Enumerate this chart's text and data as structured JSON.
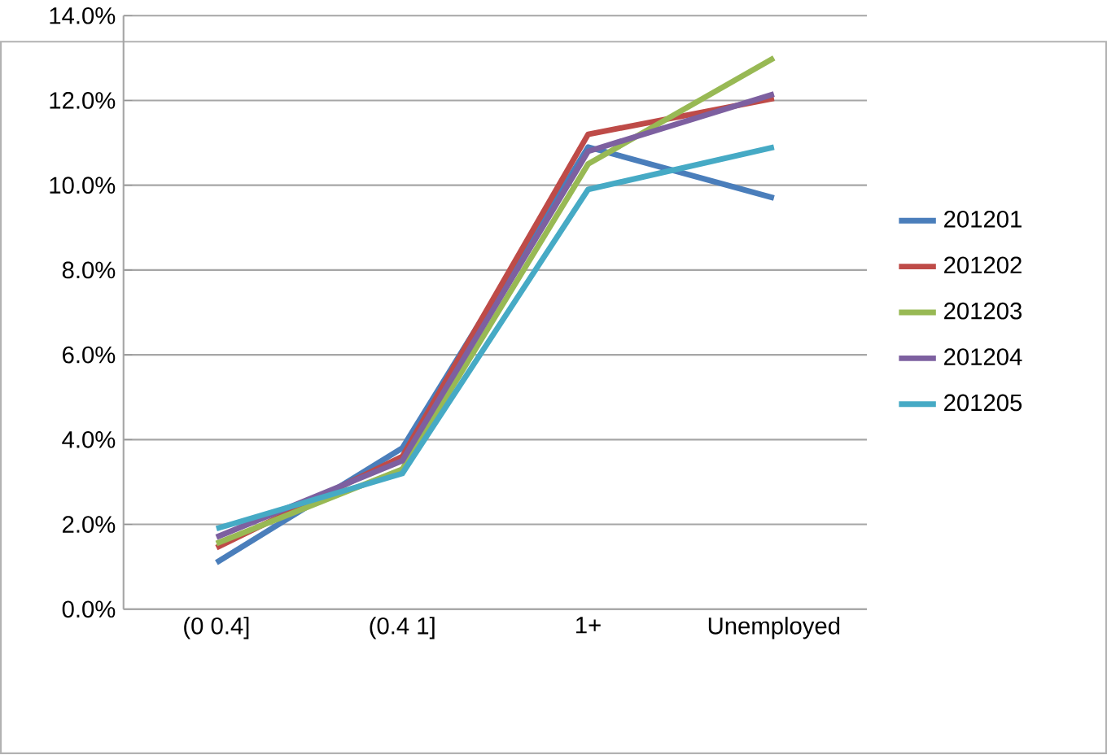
{
  "chart_data": {
    "type": "line",
    "categories": [
      "(0 0.4]",
      "(0.4 1]",
      "1+",
      "Unemployed"
    ],
    "series": [
      {
        "name": "201201",
        "color": "#4a7ebb",
        "values": [
          1.1,
          3.8,
          10.9,
          9.7
        ]
      },
      {
        "name": "201202",
        "color": "#be4b48",
        "values": [
          1.45,
          3.6,
          11.2,
          12.05
        ]
      },
      {
        "name": "201203",
        "color": "#98b954",
        "values": [
          1.55,
          3.3,
          10.5,
          13.0
        ]
      },
      {
        "name": "201204",
        "color": "#7d60a0",
        "values": [
          1.7,
          3.5,
          10.8,
          12.15
        ]
      },
      {
        "name": "201205",
        "color": "#46aac5",
        "values": [
          1.9,
          3.2,
          9.9,
          10.9
        ]
      }
    ],
    "ylim": [
      0,
      14
    ],
    "yticks": [
      {
        "value": 0,
        "label": "0.0%"
      },
      {
        "value": 2,
        "label": "2.0%"
      },
      {
        "value": 4,
        "label": "4.0%"
      },
      {
        "value": 6,
        "label": "6.0%"
      },
      {
        "value": 8,
        "label": "8.0%"
      },
      {
        "value": 10,
        "label": "10.0%"
      },
      {
        "value": 12,
        "label": "12.0%"
      },
      {
        "value": 14,
        "label": "14.0%"
      }
    ],
    "grid": "y",
    "legend": "right",
    "marker": "none",
    "line_style": "solid"
  }
}
